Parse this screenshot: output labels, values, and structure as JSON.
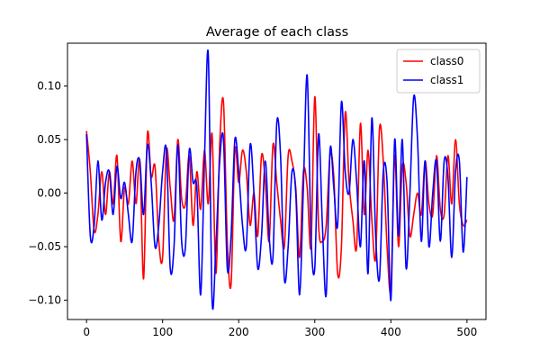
{
  "chart_data": {
    "type": "line",
    "title": "Average of each class",
    "xlabel": "",
    "ylabel": "",
    "xlim": [
      -25,
      525
    ],
    "ylim": [
      -0.118,
      0.14
    ],
    "xticks": [
      0,
      100,
      200,
      300,
      400,
      500
    ],
    "xtick_labels": [
      "0",
      "100",
      "200",
      "300",
      "400",
      "500"
    ],
    "yticks": [
      -0.1,
      -0.05,
      0.0,
      0.05,
      0.1
    ],
    "ytick_labels": [
      "−0.10",
      "−0.05",
      "0.00",
      "0.05",
      "0.10"
    ],
    "grid": false,
    "legend_position": "top-right",
    "series": [
      {
        "name": "class0",
        "color": "#ff0000",
        "x": [
          0,
          5,
          10,
          15,
          20,
          25,
          30,
          35,
          40,
          45,
          50,
          55,
          60,
          65,
          70,
          75,
          80,
          85,
          90,
          95,
          100,
          105,
          110,
          115,
          120,
          125,
          130,
          135,
          140,
          145,
          150,
          155,
          160,
          165,
          170,
          175,
          180,
          185,
          190,
          195,
          200,
          205,
          210,
          215,
          220,
          225,
          230,
          235,
          240,
          245,
          250,
          255,
          260,
          265,
          270,
          275,
          280,
          285,
          290,
          295,
          300,
          305,
          310,
          315,
          320,
          325,
          330,
          335,
          340,
          345,
          350,
          355,
          360,
          365,
          370,
          375,
          380,
          385,
          390,
          395,
          400,
          405,
          410,
          415,
          420,
          425,
          430,
          435,
          440,
          445,
          450,
          455,
          460,
          465,
          470,
          475,
          480,
          485,
          490,
          495,
          500
        ],
        "y": [
          0.058,
          0.02,
          -0.035,
          -0.02,
          0.02,
          -0.02,
          0.02,
          -0.01,
          0.035,
          -0.045,
          0.005,
          -0.01,
          0.03,
          -0.01,
          0.03,
          -0.08,
          0.055,
          0.015,
          0.025,
          -0.045,
          -0.06,
          0.04,
          0.005,
          -0.025,
          0.05,
          -0.005,
          -0.01,
          0.035,
          -0.03,
          0.02,
          -0.015,
          0.04,
          -0.01,
          0.055,
          -0.075,
          0.045,
          0.085,
          -0.045,
          -0.085,
          0.04,
          0.01,
          0.04,
          0.02,
          -0.03,
          0.0,
          -0.04,
          0.035,
          0.01,
          -0.045,
          0.045,
          0.01,
          -0.025,
          -0.05,
          0.035,
          0.03,
          0.005,
          -0.06,
          0.02,
          0.005,
          -0.05,
          0.09,
          -0.03,
          -0.045,
          -0.03,
          0.035,
          0.015,
          -0.075,
          -0.05,
          0.075,
          0.01,
          -0.025,
          -0.05,
          0.065,
          -0.02,
          0.04,
          -0.025,
          -0.06,
          0.06,
          0.03,
          -0.05,
          -0.09,
          0.035,
          -0.05,
          0.025,
          0.01,
          -0.04,
          -0.02,
          0.0,
          -0.02,
          0.03,
          -0.01,
          -0.02,
          0.035,
          -0.015,
          -0.02,
          0.035,
          -0.01,
          0.05,
          -0.01,
          -0.03,
          -0.025
        ]
      },
      {
        "name": "class1",
        "color": "#0000ff",
        "x": [
          0,
          5,
          10,
          15,
          20,
          25,
          30,
          35,
          40,
          45,
          50,
          55,
          60,
          65,
          70,
          75,
          80,
          85,
          90,
          95,
          100,
          105,
          110,
          115,
          120,
          125,
          130,
          135,
          140,
          145,
          150,
          155,
          160,
          165,
          170,
          175,
          180,
          185,
          190,
          195,
          200,
          205,
          210,
          215,
          220,
          225,
          230,
          235,
          240,
          245,
          250,
          255,
          260,
          265,
          270,
          275,
          280,
          285,
          290,
          295,
          300,
          305,
          310,
          315,
          320,
          325,
          330,
          335,
          340,
          345,
          350,
          355,
          360,
          365,
          370,
          375,
          380,
          385,
          390,
          395,
          400,
          405,
          410,
          415,
          420,
          425,
          430,
          435,
          440,
          445,
          450,
          455,
          460,
          465,
          470,
          475,
          480,
          485,
          490,
          495,
          500
        ],
        "y": [
          0.055,
          -0.04,
          -0.03,
          0.03,
          -0.025,
          0.01,
          0.02,
          -0.02,
          0.025,
          -0.005,
          0.01,
          -0.02,
          -0.045,
          0.02,
          0.03,
          -0.02,
          0.045,
          0.01,
          -0.05,
          -0.03,
          0.02,
          0.04,
          -0.07,
          -0.05,
          0.045,
          -0.045,
          -0.05,
          0.04,
          0.01,
          0.005,
          -0.095,
          0.03,
          0.13,
          -0.1,
          -0.05,
          0.03,
          0.05,
          -0.07,
          -0.04,
          0.05,
          0.02,
          -0.03,
          -0.05,
          0.045,
          0.0,
          -0.07,
          -0.04,
          0.03,
          -0.04,
          -0.06,
          0.065,
          0.035,
          -0.08,
          -0.05,
          0.02,
          0.0,
          -0.095,
          0.005,
          0.11,
          -0.04,
          -0.07,
          0.055,
          -0.03,
          -0.095,
          0.04,
          0.005,
          -0.03,
          0.085,
          0.02,
          0.0,
          0.05,
          0.01,
          -0.05,
          0.03,
          -0.075,
          0.07,
          -0.04,
          -0.08,
          0.02,
          0.01,
          -0.1,
          0.05,
          -0.04,
          0.05,
          -0.07,
          0.0,
          0.09,
          0.05,
          -0.045,
          0.03,
          -0.05,
          0.0,
          0.03,
          -0.045,
          0.03,
          0.015,
          -0.06,
          0.02,
          0.03,
          -0.055,
          0.015
        ]
      }
    ]
  }
}
